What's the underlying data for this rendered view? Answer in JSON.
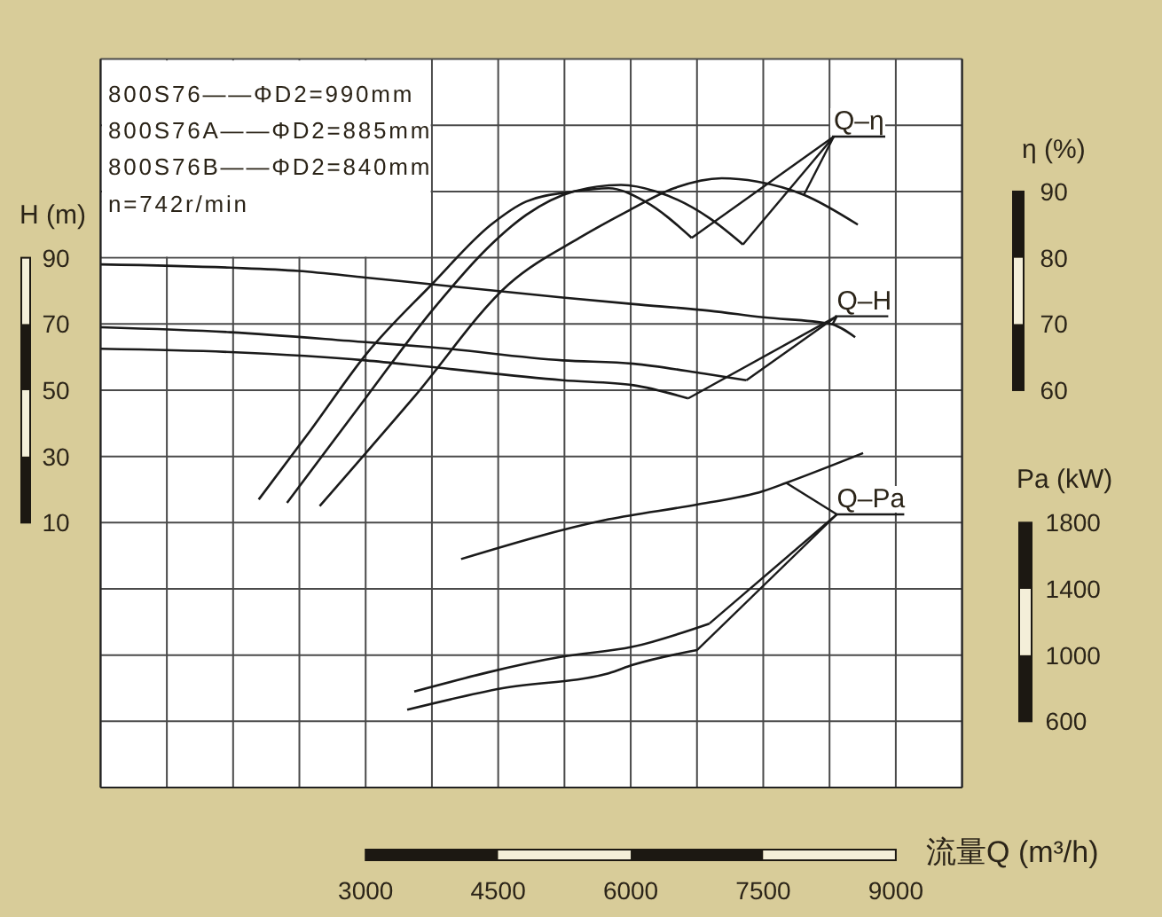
{
  "chart_data": {
    "type": "line",
    "xlabel": "流量Q (m³/h)",
    "ylabel": "H (m)",
    "y2label": "η (%)",
    "y3label": "Pa (kW)",
    "xlim": [
      0,
      9750
    ],
    "xticks": [
      {
        "value": 0,
        "label": null
      },
      {
        "value": 750,
        "label": null
      },
      {
        "value": 1500,
        "label": null
      },
      {
        "value": 2250,
        "label": null
      },
      3000,
      {
        "value": 3750,
        "label": null
      },
      4500,
      {
        "value": 5250,
        "label": null
      },
      6000,
      {
        "value": 6750,
        "label": null
      },
      7500,
      {
        "value": 8250,
        "label": null
      },
      9000,
      {
        "value": 9750,
        "label": null
      }
    ],
    "ylim": [
      -70,
      150
    ],
    "yticks": [
      {
        "value": -70,
        "label": null
      },
      {
        "value": -50,
        "label": null
      },
      {
        "value": -30,
        "label": null
      },
      {
        "value": -10,
        "label": null
      },
      10,
      30,
      50,
      70,
      90,
      {
        "value": 110,
        "label": null
      },
      {
        "value": 130,
        "label": null
      },
      {
        "value": 150,
        "label": null
      }
    ],
    "y2lim": [
      0,
      110
    ],
    "y2ticks": [
      60,
      70,
      80,
      90
    ],
    "y3lim": [
      200,
      4600
    ],
    "y3ticks": [
      600,
      1000,
      1400,
      1800
    ],
    "grid": true,
    "annotations": [
      "800S76——ΦD2=990mm",
      "800S76A——ΦD2=885mm",
      "800S76B——ΦD2=840mm",
      "n=742r/min",
      {
        "text": "Q–η",
        "x": 7960,
        "y": 109
      },
      {
        "text": "Q–H",
        "x": 7310,
        "y": 53
      },
      {
        "text": "Q–Pa",
        "x": 7760,
        "y": 22
      }
    ],
    "series": [
      {
        "color": "#1a1a1a",
        "x": [
          0,
          1470,
          2240,
          3000,
          3740,
          5230,
          6030,
          6890,
          7500,
          8260,
          8540
        ],
        "values": [
          88,
          87,
          86,
          84,
          82,
          78,
          76,
          74,
          72,
          70,
          66
        ]
      },
      {
        "color": "#1a1a1a",
        "x": [
          0,
          1470,
          3000,
          3740,
          5230,
          6030,
          6830,
          7310
        ],
        "values": [
          69,
          67.5,
          64.5,
          63,
          59,
          58,
          55,
          53
        ]
      },
      {
        "color": "#1a1a1a",
        "x": [
          0,
          1470,
          3000,
          3740,
          5230,
          6030,
          6650
        ],
        "values": [
          62.5,
          61.5,
          59,
          57,
          53,
          51.5,
          47.5
        ]
      },
      {
        "color": "#1a1a1a",
        "axis": "y2",
        "x": [
          1790,
          2380,
          3010,
          3750,
          4420,
          4820,
          5350,
          5750,
          6160,
          6690
        ],
        "values": [
          43.5,
          54,
          65.5,
          76,
          85,
          88.5,
          90,
          90.5,
          88.5,
          83
        ]
      },
      {
        "color": "#1a1a1a",
        "axis": "y2",
        "x": [
          2110,
          3010,
          3750,
          4420,
          4820,
          5350,
          5890,
          6290,
          6890,
          7270
        ],
        "values": [
          43,
          59,
          72,
          82,
          86.5,
          90,
          91,
          90,
          86,
          82
        ]
      },
      {
        "color": "#1a1a1a",
        "axis": "y2",
        "x": [
          2480,
          3550,
          4620,
          5420,
          5960,
          6490,
          7030,
          7430,
          7960,
          8570
        ],
        "values": [
          42.5,
          59,
          76,
          83,
          87,
          90.5,
          92,
          91.5,
          89.5,
          85
        ]
      },
      {
        "color": "#1a1a1a",
        "axis": "y3",
        "x": [
          4080,
          5750,
          6760,
          7500,
          7760,
          8630
        ],
        "values": [
          1580,
          1820,
          1910,
          1990,
          2040,
          2220
        ]
      },
      {
        "color": "#1a1a1a",
        "axis": "y3",
        "x": [
          3550,
          5220,
          6020,
          6890
        ],
        "values": [
          780,
          990,
          1050,
          1190
        ]
      },
      {
        "color": "#1a1a1a",
        "axis": "y3",
        "x": [
          3470,
          4550,
          5750,
          6020,
          6750
        ],
        "values": [
          670,
          800,
          890,
          940,
          1030
        ]
      }
    ]
  }
}
